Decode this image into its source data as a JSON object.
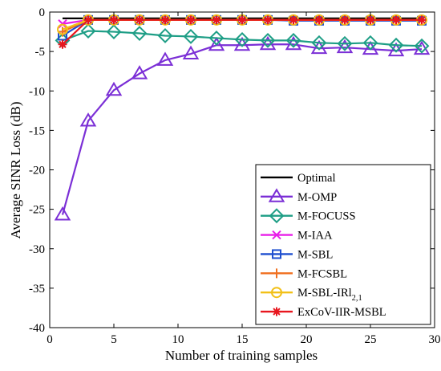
{
  "chart_data": {
    "type": "line",
    "xlabel": "Number of training samples",
    "ylabel": "Average SINR Loss (dB)",
    "xlim": [
      0,
      30
    ],
    "ylim": [
      -40,
      0
    ],
    "x_ticks": [
      0,
      5,
      10,
      15,
      20,
      25,
      30
    ],
    "y_ticks": [
      -40,
      -35,
      -30,
      -25,
      -20,
      -15,
      -10,
      -5,
      0
    ],
    "x_tick_labels": [
      "0",
      "5",
      "10",
      "15",
      "20",
      "25",
      "30"
    ],
    "y_tick_labels": [
      "-40",
      "-35",
      "-30",
      "-25",
      "-20",
      "-15",
      "-10",
      "-5",
      "0"
    ],
    "grid": false,
    "legend_position": "bottom-right",
    "x": [
      1,
      3,
      5,
      7,
      9,
      11,
      13,
      15,
      17,
      19,
      21,
      23,
      25,
      27,
      29
    ],
    "series": [
      {
        "name": "Optimal",
        "label_main": "Optimal",
        "label_sub": "",
        "color": "#000000",
        "marker": "none",
        "values": [
          -0.8,
          -0.8,
          -0.8,
          -0.8,
          -0.8,
          -0.8,
          -0.8,
          -0.8,
          -0.8,
          -0.8,
          -0.8,
          -0.8,
          -0.8,
          -0.8,
          -0.8
        ]
      },
      {
        "name": "M-OMP",
        "label_main": "M-OMP",
        "label_sub": "",
        "color": "#7b2fd6",
        "marker": "triangle",
        "values": [
          -25.7,
          -13.8,
          -9.9,
          -7.8,
          -6.1,
          -5.3,
          -4.2,
          -4.2,
          -4.1,
          -4.1,
          -4.6,
          -4.5,
          -4.7,
          -4.9,
          -4.7
        ]
      },
      {
        "name": "M-FOCUSS",
        "label_main": "M-FOCUSS",
        "label_sub": "",
        "color": "#1e9e86",
        "marker": "diamond",
        "values": [
          -3.6,
          -2.4,
          -2.5,
          -2.7,
          -3.0,
          -3.1,
          -3.3,
          -3.5,
          -3.6,
          -3.6,
          -3.9,
          -4.0,
          -3.9,
          -4.2,
          -4.3
        ]
      },
      {
        "name": "M-IAA",
        "label_main": "M-IAA",
        "label_sub": "",
        "color": "#e81ee8",
        "marker": "x",
        "values": [
          -1.5,
          -1.0,
          -1.0,
          -1.0,
          -1.0,
          -1.0,
          -1.0,
          -1.0,
          -1.0,
          -1.0,
          -1.0,
          -1.0,
          -1.0,
          -1.0,
          -1.0
        ]
      },
      {
        "name": "M-SBL",
        "label_main": "M-SBL",
        "label_sub": "",
        "color": "#1f4fcf",
        "marker": "square",
        "values": [
          -3.0,
          -1.0,
          -1.0,
          -1.0,
          -1.0,
          -1.0,
          -1.0,
          -1.0,
          -1.0,
          -1.1,
          -1.1,
          -1.1,
          -1.1,
          -1.1,
          -1.1
        ]
      },
      {
        "name": "M-FCSBL",
        "label_main": "M-FCSBL",
        "label_sub": "",
        "color": "#f07020",
        "marker": "plus",
        "values": [
          -2.5,
          -1.0,
          -1.0,
          -1.0,
          -1.0,
          -1.0,
          -1.0,
          -1.0,
          -1.0,
          -1.0,
          -1.0,
          -1.0,
          -1.0,
          -1.0,
          -1.0
        ]
      },
      {
        "name": "M-SBL-IRl2,1",
        "label_main": "M-SBL-IRl",
        "label_sub": "2,1",
        "color": "#f2c018",
        "marker": "circle",
        "values": [
          -2.2,
          -1.0,
          -1.0,
          -1.0,
          -1.0,
          -1.0,
          -1.0,
          -1.0,
          -1.0,
          -1.0,
          -1.0,
          -1.0,
          -1.0,
          -1.0,
          -1.0
        ]
      },
      {
        "name": "ExCoV-IIR-MSBL",
        "label_main": "ExCoV-IIR-MSBL",
        "label_sub": "",
        "color": "#e8161e",
        "marker": "asterisk",
        "values": [
          -4.1,
          -1.0,
          -1.0,
          -1.0,
          -1.0,
          -1.0,
          -1.0,
          -1.0,
          -1.0,
          -1.0,
          -1.0,
          -1.0,
          -1.0,
          -1.0,
          -1.0
        ]
      }
    ]
  }
}
